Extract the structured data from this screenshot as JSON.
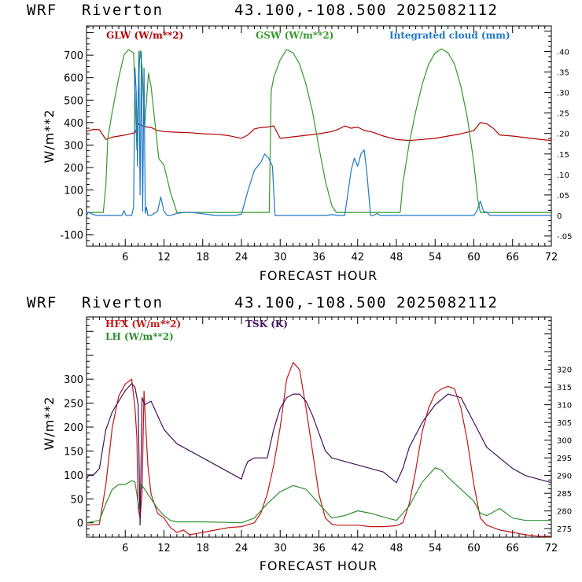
{
  "chart_data": [
    {
      "type": "line",
      "title": {
        "model": "WRF",
        "station": "Riverton",
        "coords": "43.100,-108.500",
        "date": "2025082112"
      },
      "xlabel": "FORECAST HOUR",
      "ylabel": "W/m**2",
      "xlim": [
        0,
        72
      ],
      "ylim": [
        -150,
        830
      ],
      "y2lim": [
        -0.075,
        0.4625
      ],
      "xticks": [
        6,
        12,
        18,
        24,
        30,
        36,
        42,
        48,
        54,
        60,
        66,
        72
      ],
      "yticks": [
        -100,
        0,
        100,
        200,
        300,
        400,
        500,
        600,
        700
      ],
      "y2ticks": [
        -0.05,
        0,
        0.05,
        0.1,
        0.15,
        0.2,
        0.25,
        0.3,
        0.35,
        0.4
      ],
      "y2ticklabels": [
        "-.05",
        "0",
        ".05",
        ".10",
        ".15",
        ".20",
        ".25",
        ".30",
        ".35",
        ".40"
      ],
      "series": [
        {
          "name": "GLW (W/m**2)",
          "color": "#b40000",
          "axis": "left",
          "x": [
            0,
            1,
            2,
            3,
            4,
            6,
            7.5,
            8,
            9,
            10,
            11,
            12,
            14,
            16,
            18,
            20,
            22,
            24,
            25,
            26,
            27,
            28,
            29,
            30,
            33,
            36,
            38,
            39,
            40,
            41,
            42,
            43,
            44,
            45,
            46,
            48,
            50,
            52,
            54,
            56,
            58,
            60,
            61,
            62,
            63,
            64,
            66,
            68,
            70,
            72
          ],
          "y": [
            360,
            370,
            368,
            325,
            335,
            345,
            355,
            395,
            382,
            378,
            365,
            360,
            357,
            355,
            350,
            348,
            342,
            330,
            345,
            372,
            378,
            380,
            385,
            330,
            340,
            350,
            360,
            370,
            385,
            375,
            380,
            365,
            360,
            350,
            340,
            325,
            320,
            325,
            330,
            340,
            350,
            365,
            400,
            395,
            375,
            345,
            340,
            333,
            326,
            320
          ]
        },
        {
          "name": "GSW (W/m**2)",
          "color": "#339a2a",
          "axis": "left",
          "x": [
            0,
            2.6,
            3.0,
            3.3,
            4,
            5,
            5.8,
            6.5,
            7.3,
            7.6,
            7.8,
            8.0,
            8.3,
            8.6,
            9.0,
            9.3,
            9.6,
            10,
            10.6,
            11.2,
            12,
            13,
            14,
            16,
            18,
            20,
            22,
            24,
            26,
            28.3,
            28.6,
            29,
            30,
            31,
            32,
            33,
            34,
            35,
            36,
            37,
            38,
            38.7,
            39,
            40,
            42,
            44,
            46,
            48,
            48.6,
            49,
            50,
            51,
            52,
            53,
            54,
            55,
            56,
            57,
            58,
            59,
            60,
            60.6,
            61,
            62,
            64,
            66,
            68,
            70,
            72
          ],
          "y": [
            0,
            0,
            120,
            330,
            450,
            600,
            700,
            725,
            710,
            450,
            280,
            530,
            720,
            650,
            380,
            500,
            620,
            560,
            400,
            240,
            210,
            90,
            0,
            0,
            0,
            0,
            0,
            0,
            0,
            0,
            540,
            600,
            680,
            725,
            710,
            660,
            570,
            450,
            290,
            140,
            30,
            0,
            0,
            0,
            0,
            0,
            0,
            0,
            0,
            130,
            310,
            450,
            570,
            660,
            710,
            728,
            710,
            660,
            560,
            420,
            220,
            60,
            0,
            0,
            0,
            0,
            0,
            0,
            0
          ]
        },
        {
          "name": "Integrated cloud (mm)",
          "color": "#1f78c8",
          "axis": "right",
          "x": [
            0,
            0.3,
            0.8,
            1.5,
            4,
            5.5,
            5.8,
            6.1,
            6.4,
            7,
            7.3,
            7.5,
            7.7,
            7.9,
            8.1,
            8.3,
            8.5,
            8.7,
            8.9,
            9.1,
            9.3,
            9.5,
            10,
            11,
            11.5,
            12,
            12.5,
            13,
            14,
            15,
            16,
            17,
            18,
            19,
            20,
            21,
            22,
            23,
            24,
            25,
            26,
            27,
            27.6,
            28.2,
            28.8,
            29.2,
            30,
            32,
            34,
            37,
            38,
            39,
            40,
            41,
            41.5,
            42,
            42.5,
            43,
            43.4,
            44,
            44.5,
            45,
            45.5,
            46,
            48,
            54,
            60,
            60.5,
            61,
            61.5,
            62,
            62.5,
            63,
            64,
            66,
            72
          ],
          "y": [
            0,
            0.008,
            0.004,
            0,
            0,
            0,
            0.012,
            0,
            0,
            0,
            0.02,
            0.36,
            0.3,
            0.12,
            0.4,
            0.05,
            0.4,
            0.01,
            0.36,
            0.005,
            0.02,
            0,
            0,
            0.01,
            0.045,
            0.01,
            0,
            0,
            0.005,
            0.007,
            0.008,
            0.006,
            0.004,
            0.002,
            0,
            0,
            0,
            0,
            0.003,
            0.06,
            0.11,
            0.13,
            0.15,
            0.14,
            0.12,
            0,
            0,
            0,
            0,
            0,
            0.002,
            0,
            0,
            0.11,
            0.14,
            0.12,
            0.15,
            0.16,
            0.11,
            0,
            0,
            0.005,
            0,
            0,
            0,
            0,
            0,
            0.012,
            0.035,
            0.01,
            0.008,
            0,
            0,
            0,
            0,
            0
          ]
        }
      ]
    },
    {
      "type": "line",
      "title": {
        "model": "WRF",
        "station": "Riverton",
        "coords": "43.100,-108.500",
        "date": "2025082112"
      },
      "xlabel": "FORECAST HOUR",
      "ylabel": "W/m**2",
      "xlim": [
        0,
        72
      ],
      "ylim": [
        -30,
        430
      ],
      "y2lim": [
        272.6,
        334.8
      ],
      "xticks": [
        6,
        12,
        18,
        24,
        30,
        36,
        42,
        48,
        54,
        60,
        66,
        72
      ],
      "yticks": [
        0,
        50,
        100,
        150,
        200,
        250,
        300
      ],
      "y2ticks": [
        275,
        280,
        285,
        290,
        295,
        300,
        305,
        310,
        315,
        320
      ],
      "y2ticklabels": [
        "275",
        "280",
        "285",
        "290",
        "295",
        "300",
        "305",
        "310",
        "315",
        "320"
      ],
      "series": [
        {
          "name": "HFX (W/m**2)",
          "color": "#c01818",
          "axis": "left",
          "x": [
            0,
            2,
            3,
            4,
            5,
            6,
            7,
            7.5,
            7.8,
            8.0,
            8.3,
            8.6,
            8.9,
            9.1,
            9.5,
            10,
            11,
            12,
            13,
            14,
            15,
            16,
            18,
            20,
            22,
            24,
            26,
            27,
            28,
            29,
            30,
            31,
            32,
            33,
            34,
            35,
            36,
            37,
            38,
            39,
            40,
            42,
            44,
            46,
            48,
            49,
            50,
            51,
            52,
            53,
            54,
            55,
            56,
            57,
            58,
            59,
            60,
            61,
            62,
            64,
            66,
            68,
            70,
            72
          ],
          "y": [
            -5,
            -3,
            80,
            200,
            265,
            290,
            300,
            240,
            180,
            30,
            10,
            60,
            275,
            220,
            120,
            60,
            20,
            10,
            -10,
            -20,
            -15,
            -25,
            -20,
            -15,
            -10,
            -8,
            0,
            20,
            60,
            120,
            200,
            300,
            335,
            320,
            240,
            150,
            60,
            10,
            -3,
            -5,
            -5,
            -5,
            -8,
            -8,
            -6,
            0,
            40,
            110,
            190,
            240,
            270,
            280,
            285,
            280,
            240,
            170,
            80,
            10,
            -5,
            -15,
            -20,
            -25,
            -28,
            -28
          ]
        },
        {
          "name": "LH (W/m**2)",
          "color": "#2f8f2f",
          "axis": "left",
          "x": [
            0,
            2,
            3,
            4,
            5,
            6,
            7,
            7.5,
            7.8,
            8.1,
            8.5,
            9,
            10,
            11,
            12,
            13,
            14,
            18,
            24,
            26,
            28,
            30,
            32,
            34,
            36,
            38,
            40,
            42,
            44,
            46,
            48,
            50,
            52,
            54,
            55,
            56,
            58,
            60,
            61,
            62,
            64,
            66,
            68,
            72
          ],
          "y": [
            0,
            5,
            40,
            70,
            80,
            80,
            88,
            85,
            60,
            30,
            80,
            70,
            50,
            30,
            15,
            5,
            2,
            2,
            0,
            10,
            40,
            65,
            78,
            70,
            40,
            10,
            15,
            25,
            20,
            12,
            5,
            35,
            85,
            115,
            110,
            95,
            70,
            45,
            20,
            15,
            30,
            10,
            5,
            5
          ]
        },
        {
          "name": "TSK (K)",
          "color": "#46115a",
          "axis": "right",
          "x": [
            0,
            0.3,
            1,
            2,
            3,
            4,
            5,
            6,
            7,
            7.5,
            8,
            8.3,
            8.6,
            9,
            10,
            12,
            14,
            16,
            18,
            20,
            22,
            24,
            24.5,
            25,
            26,
            28,
            29,
            30,
            31,
            32,
            33,
            34,
            35,
            36,
            37,
            38,
            40,
            42,
            44,
            46,
            48,
            49,
            50,
            52,
            54,
            56,
            58,
            60,
            62,
            64,
            66,
            68,
            70,
            72
          ],
          "y": [
            289,
            290,
            290,
            292,
            303,
            308,
            311,
            314,
            316,
            315,
            310,
            276,
            312,
            310,
            311,
            303,
            299,
            297,
            295,
            293,
            291,
            289,
            292,
            294,
            295,
            295,
            303,
            309,
            312,
            313,
            313,
            311,
            307,
            302,
            297,
            295,
            294,
            293,
            292,
            291,
            288,
            292,
            298,
            305,
            310,
            313,
            312,
            305,
            298,
            295,
            292,
            290,
            289,
            288
          ]
        }
      ]
    }
  ],
  "legend1": [
    {
      "label": "GLW (W/m**2)",
      "color": "#b40000"
    },
    {
      "label": "GSW (W/m**2)",
      "color": "#339a2a"
    },
    {
      "label": "Integrated cloud (mm)",
      "color": "#1f78c8"
    }
  ],
  "legend2": [
    {
      "label": "HFX (W/m**2)",
      "color": "#c01818"
    },
    {
      "label": "LH  (W/m**2)",
      "color": "#2f8f2f"
    },
    {
      "label": "TSK (K)",
      "color": "#46115a"
    }
  ]
}
